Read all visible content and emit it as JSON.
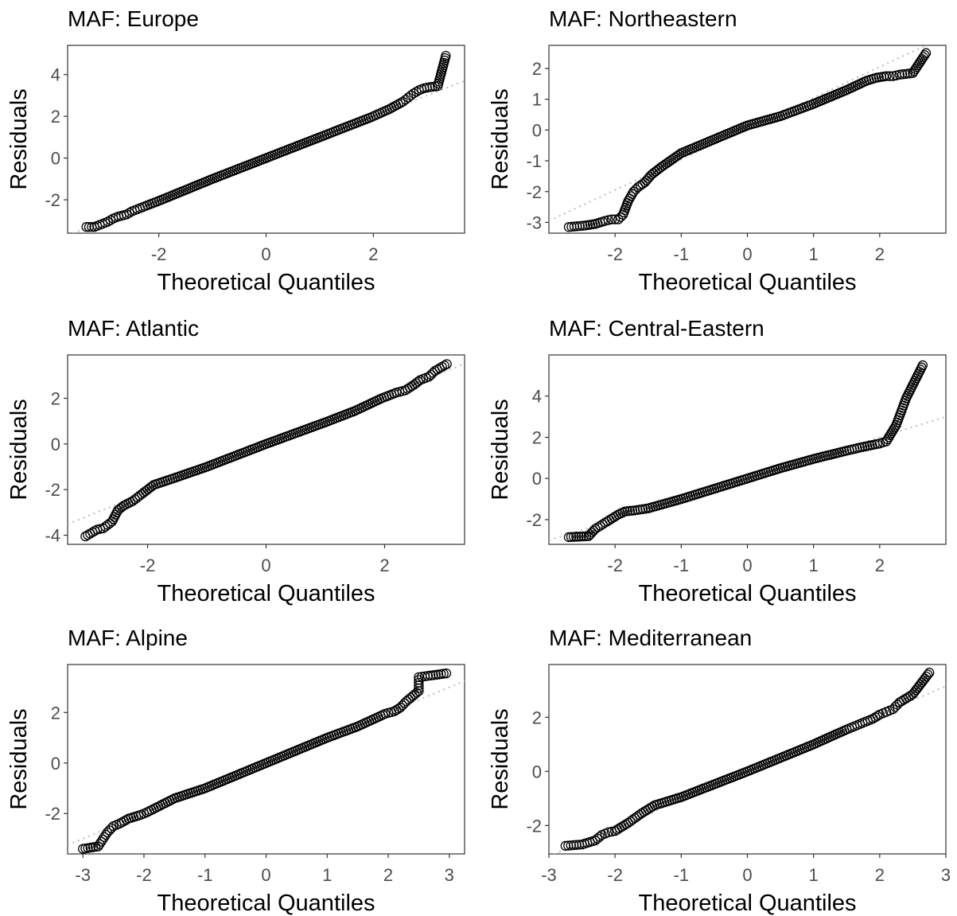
{
  "chart_data": [
    {
      "type": "scatter",
      "title": "MAF: Europe",
      "xlabel": "Theoretical Quantiles",
      "ylabel": "Residuals",
      "xlim": [
        -3.7,
        3.7
      ],
      "ylim": [
        -3.6,
        5.4
      ],
      "xticks": [
        -2,
        0,
        2
      ],
      "yticks": [
        -2,
        0,
        2,
        4
      ],
      "grid": false,
      "reference_line": {
        "intercept": 0.0,
        "slope": 1.0
      },
      "x": [
        -3.35,
        -3.2,
        -3.05,
        -2.95,
        -2.85,
        -2.75,
        -2.6,
        -2.5,
        -2.3,
        -1.95,
        -1.0,
        0.0,
        1.0,
        1.95,
        2.3,
        2.55,
        2.65,
        2.75,
        2.85,
        2.95,
        3.05,
        3.2,
        3.35
      ],
      "y": [
        -3.3,
        -3.3,
        -3.15,
        -3.05,
        -2.9,
        -2.8,
        -2.7,
        -2.55,
        -2.35,
        -2.0,
        -1.0,
        0.0,
        1.0,
        1.95,
        2.35,
        2.7,
        2.9,
        3.1,
        3.25,
        3.35,
        3.4,
        3.45,
        4.9
      ]
    },
    {
      "type": "scatter",
      "title": "MAF: Northeastern",
      "xlabel": "Theoretical Quantiles",
      "ylabel": "Residuals",
      "xlim": [
        -3.0,
        3.0
      ],
      "ylim": [
        -3.35,
        2.75
      ],
      "xticks": [
        -2,
        -1,
        0,
        1,
        2
      ],
      "yticks": [
        -3,
        -2,
        -1,
        0,
        1,
        2
      ],
      "grid": false,
      "reference_line": {
        "intercept": 0.05,
        "slope": 1.0
      },
      "x": [
        -2.7,
        -2.45,
        -2.3,
        -2.15,
        -2.05,
        -1.95,
        -1.88,
        -1.8,
        -1.72,
        -1.65,
        -1.55,
        -1.45,
        -1.3,
        -1.0,
        -0.5,
        0.0,
        0.5,
        1.0,
        1.5,
        1.8,
        1.95,
        2.1,
        2.2,
        2.3,
        2.5,
        2.7
      ],
      "y": [
        -3.15,
        -3.1,
        -3.05,
        -2.95,
        -2.9,
        -2.9,
        -2.75,
        -2.3,
        -2.0,
        -1.85,
        -1.7,
        -1.45,
        -1.2,
        -0.75,
        -0.3,
        0.15,
        0.45,
        0.85,
        1.3,
        1.6,
        1.7,
        1.75,
        1.75,
        1.8,
        1.85,
        2.5
      ]
    },
    {
      "type": "scatter",
      "title": "MAF: Atlantic",
      "xlabel": "Theoretical Quantiles",
      "ylabel": "Residuals",
      "xlim": [
        -3.35,
        3.35
      ],
      "ylim": [
        -4.4,
        3.9
      ],
      "xticks": [
        -2,
        0,
        2
      ],
      "yticks": [
        -4,
        -2,
        0,
        2
      ],
      "grid": false,
      "reference_line": {
        "intercept": 0.0,
        "slope": 1.05
      },
      "x": [
        -3.05,
        -2.85,
        -2.75,
        -2.6,
        -2.5,
        -2.4,
        -2.25,
        -2.1,
        -1.9,
        -1.5,
        -1.0,
        0.0,
        1.0,
        1.5,
        1.95,
        2.2,
        2.35,
        2.5,
        2.6,
        2.75,
        2.85,
        3.05
      ],
      "y": [
        -4.05,
        -3.75,
        -3.7,
        -3.4,
        -2.9,
        -2.7,
        -2.5,
        -2.2,
        -1.8,
        -1.45,
        -1.0,
        0.0,
        0.95,
        1.45,
        2.0,
        2.25,
        2.35,
        2.6,
        2.8,
        2.95,
        3.2,
        3.5
      ]
    },
    {
      "type": "scatter",
      "title": "MAF: Central-Eastern",
      "xlabel": "Theoretical Quantiles",
      "ylabel": "Residuals",
      "xlim": [
        -3.0,
        3.0
      ],
      "ylim": [
        -3.2,
        6.0
      ],
      "xticks": [
        -2,
        -1,
        0,
        1,
        2
      ],
      "yticks": [
        -2,
        0,
        2,
        4
      ],
      "grid": false,
      "reference_line": {
        "intercept": 0.0,
        "slope": 1.0
      },
      "x": [
        -2.7,
        -2.4,
        -2.3,
        -2.15,
        -2.05,
        -1.95,
        -1.85,
        -1.7,
        -1.5,
        -1.0,
        -0.5,
        0.0,
        0.5,
        1.0,
        1.5,
        1.7,
        1.85,
        2.0,
        2.1,
        2.25,
        2.4,
        2.65
      ],
      "y": [
        -2.85,
        -2.8,
        -2.45,
        -2.15,
        -1.95,
        -1.75,
        -1.6,
        -1.55,
        -1.45,
        -1.0,
        -0.5,
        0.0,
        0.5,
        0.95,
        1.35,
        1.5,
        1.6,
        1.7,
        1.8,
        2.6,
        3.9,
        5.5
      ]
    },
    {
      "type": "scatter",
      "title": "MAF: Alpine",
      "xlabel": "Theoretical Quantiles",
      "ylabel": "Residuals",
      "xlim": [
        -3.25,
        3.25
      ],
      "ylim": [
        -3.6,
        3.9
      ],
      "xticks": [
        -3,
        -2,
        -1,
        0,
        1,
        2,
        3
      ],
      "yticks": [
        -2,
        0,
        2
      ],
      "grid": false,
      "reference_line": {
        "intercept": 0.0,
        "slope": 1.0
      },
      "x": [
        -3.0,
        -2.75,
        -2.6,
        -2.5,
        -2.4,
        -2.25,
        -2.05,
        -1.95,
        -1.5,
        -1.0,
        0.0,
        1.0,
        1.5,
        1.95,
        2.1,
        2.2,
        2.3,
        2.4,
        2.5,
        2.5,
        2.65,
        2.95
      ],
      "y": [
        -3.4,
        -3.3,
        -2.75,
        -2.5,
        -2.4,
        -2.2,
        -2.05,
        -1.95,
        -1.4,
        -1.0,
        0.0,
        1.0,
        1.45,
        1.95,
        2.05,
        2.2,
        2.45,
        2.65,
        2.85,
        3.4,
        3.45,
        3.55
      ]
    },
    {
      "type": "scatter",
      "title": "MAF: Mediterranean",
      "xlabel": "Theoretical Quantiles",
      "ylabel": "Residuals",
      "xlim": [
        -3.0,
        3.0
      ],
      "ylim": [
        -3.05,
        3.95
      ],
      "xticks": [
        -3,
        -2,
        -1,
        0,
        1,
        2,
        3
      ],
      "yticks": [
        -2,
        0,
        2
      ],
      "grid": false,
      "reference_line": {
        "intercept": 0.0,
        "slope": 1.05
      },
      "x": [
        -2.75,
        -2.5,
        -2.3,
        -2.2,
        -2.1,
        -2.0,
        -1.9,
        -1.8,
        -1.6,
        -1.4,
        -1.0,
        0.0,
        1.0,
        1.5,
        1.7,
        1.9,
        2.0,
        2.1,
        2.2,
        2.3,
        2.5,
        2.75
      ],
      "y": [
        -2.75,
        -2.7,
        -2.55,
        -2.35,
        -2.25,
        -2.2,
        -2.05,
        -1.9,
        -1.55,
        -1.25,
        -0.95,
        0.0,
        1.0,
        1.55,
        1.75,
        1.95,
        2.1,
        2.2,
        2.3,
        2.55,
        2.85,
        3.65
      ]
    }
  ]
}
